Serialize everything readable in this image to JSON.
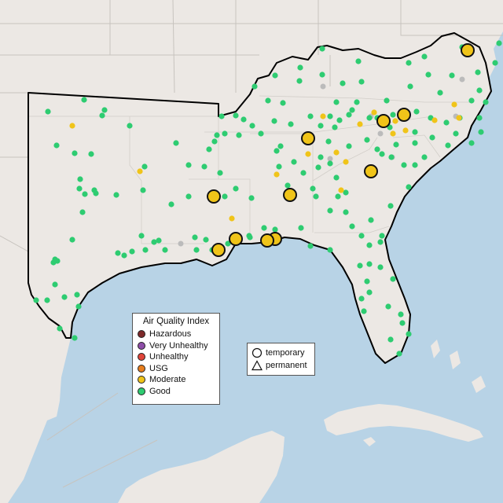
{
  "legend": {
    "title": "Air Quality Index",
    "categories": [
      {
        "label": "Hazardous",
        "color": "#7e2a2a"
      },
      {
        "label": "Very Unhealthy",
        "color": "#8e4ea8"
      },
      {
        "label": "Unhealthy",
        "color": "#e0453a"
      },
      {
        "label": "USG",
        "color": "#e87e1e"
      },
      {
        "label": "Moderate",
        "color": "#f0c419"
      },
      {
        "label": "Good",
        "color": "#2ecc71"
      }
    ]
  },
  "monitor_types": {
    "temporary_label": "temporary",
    "permanent_label": "permanent",
    "temporary_symbol": "circle-icon",
    "permanent_symbol": "triangle-icon"
  },
  "colors": {
    "land": "#ece8e4",
    "water": "#b8d3e6",
    "border": "#000000",
    "state_lines": "#c7c3be",
    "no_data": "#bbbbbb"
  },
  "markers": {
    "large_moderate_count": 11
  }
}
